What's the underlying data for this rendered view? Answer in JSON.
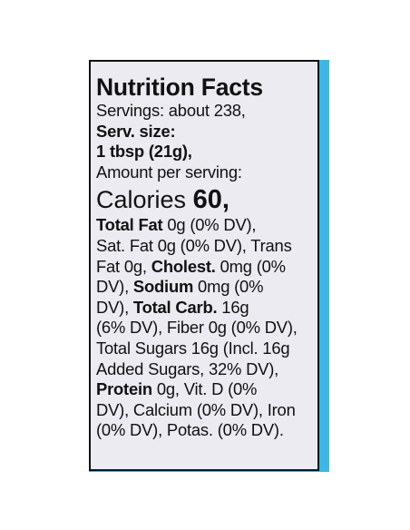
{
  "colors": {
    "package_edge": "#3fb6e3",
    "panel_background": "#ecebf2",
    "text": "#111111"
  },
  "label": {
    "title": "Nutrition Facts",
    "servings": "Servings: about 238,",
    "serving_size_label": "Serv. size:",
    "serving_size_value": "1 tbsp (21g),",
    "amount_per_serving": "Amount per serving:",
    "calories_label": "Calories",
    "calories_value": "60,",
    "total_fat_label": "Total Fat",
    "total_fat_value": " 0g (0% DV),",
    "sat_fat": "Sat. Fat 0g (0% DV), Trans",
    "trans_fat": "Fat 0g, ",
    "cholesterol_label": "Cholest.",
    "cholesterol_value": " 0mg (0%",
    "cholesterol_dv": "DV), ",
    "sodium_label": "Sodium",
    "sodium_value": " 0mg (0%",
    "sodium_dv": "DV), ",
    "total_carb_label": "Total Carb.",
    "total_carb_value": " 16g",
    "carb_dv_fiber": "(6% DV), Fiber 0g (0% DV),",
    "total_sugars": "Total Sugars 16g (Incl. 16g",
    "added_sugars": "Added Sugars, 32% DV),",
    "protein_label": "Protein",
    "protein_value": " 0g, Vit. D (0%",
    "calcium_iron": "DV), Calcium (0% DV), Iron",
    "potassium": "(0% DV), Potas. (0% DV)."
  }
}
